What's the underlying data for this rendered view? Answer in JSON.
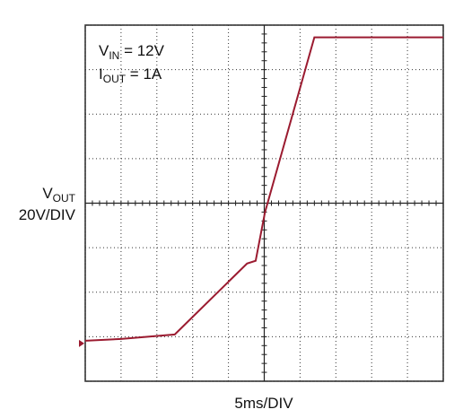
{
  "chart_data": {
    "type": "line",
    "x_label": "5ms/DIV",
    "y_label": {
      "main": "V",
      "sub": "OUT",
      "second_line": "20V/DIV"
    },
    "annotations": [
      {
        "main": "V",
        "sub": "IN",
        "rest": " = 12V"
      },
      {
        "main": "I",
        "sub": "OUT",
        "rest": " = 1A"
      }
    ],
    "x": [
      0,
      5,
      12.5,
      22.6,
      23.8,
      25.1,
      32.0,
      50
    ],
    "series": [
      {
        "color": "#9b1b30",
        "values": [
          1.2,
          2.0,
          4.0,
          35.9,
          37.1,
          58.9,
          137.5,
          137.5
        ]
      }
    ],
    "xlim": [
      0,
      50
    ],
    "ylim": [
      -17,
      143
    ],
    "xticks": [
      0,
      5,
      10,
      15,
      20,
      25,
      30,
      35,
      40,
      45,
      50
    ],
    "yticks": [
      -17,
      3,
      23,
      43,
      63,
      83,
      103,
      123,
      143
    ],
    "ground": 0,
    "grid": true
  }
}
